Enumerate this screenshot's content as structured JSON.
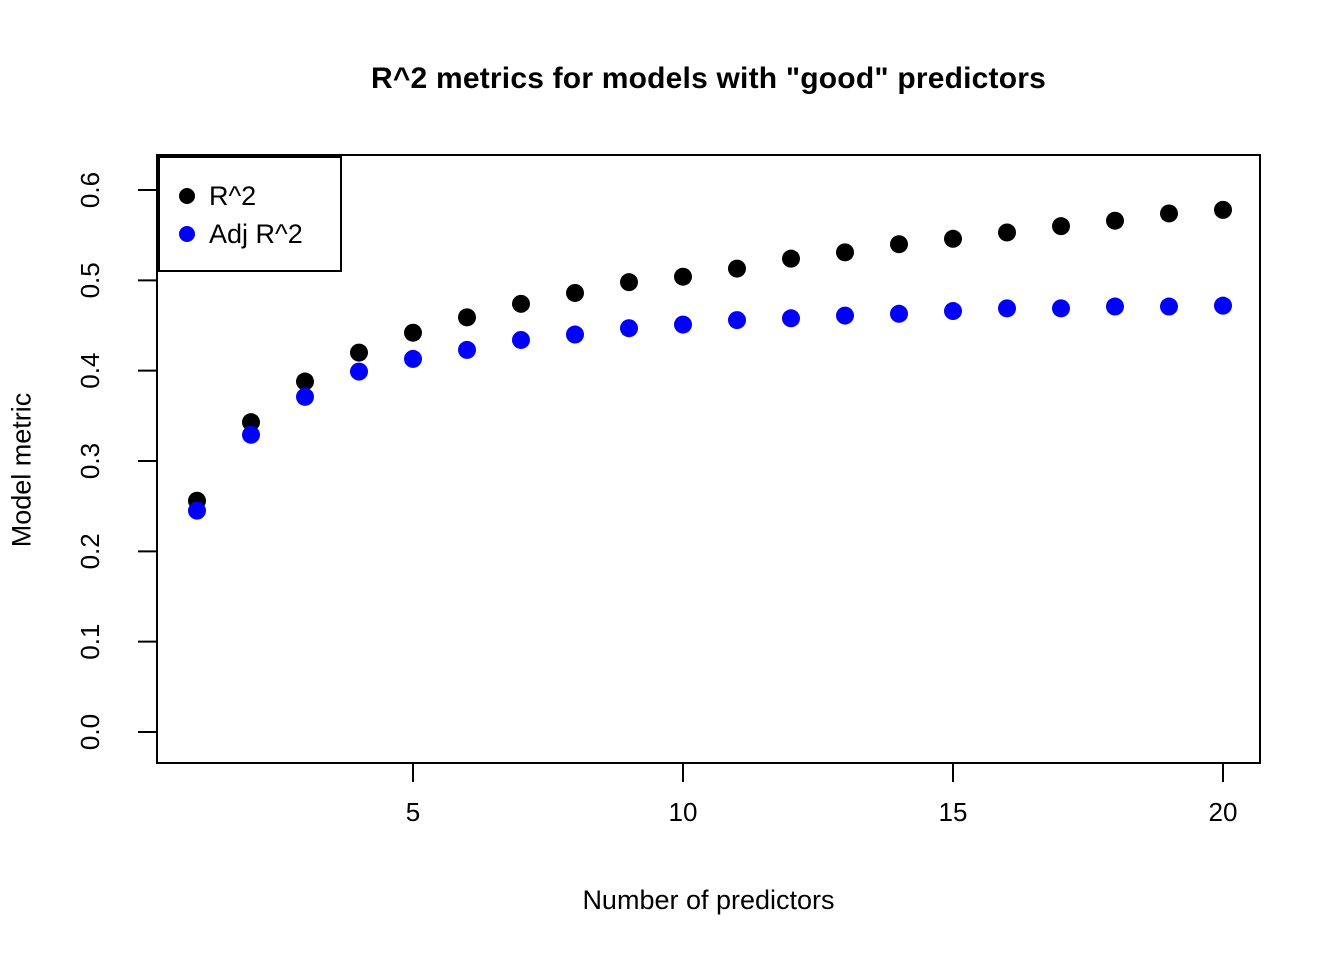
{
  "figure": {
    "background": "#ffffff"
  },
  "chart_data": {
    "type": "scatter",
    "title": "R^2 metrics for models with \"good\" predictors",
    "xlabel": "Number of predictors",
    "ylabel": "Model metric",
    "xlim": [
      1,
      20
    ],
    "ylim": [
      0.0,
      0.6
    ],
    "grid": false,
    "legend_position": "topleft",
    "x_ticks": [
      "5",
      "10",
      "15",
      "20"
    ],
    "x_tick_values": [
      5,
      10,
      15,
      20
    ],
    "y_ticks": [
      "0.0",
      "0.1",
      "0.2",
      "0.3",
      "0.4",
      "0.5",
      "0.6"
    ],
    "y_tick_values": [
      0.0,
      0.1,
      0.2,
      0.3,
      0.4,
      0.5,
      0.6
    ],
    "x": [
      1,
      2,
      3,
      4,
      5,
      6,
      7,
      8,
      9,
      10,
      11,
      12,
      13,
      14,
      15,
      16,
      17,
      18,
      19,
      20
    ],
    "series": [
      {
        "name": "R^2",
        "color": "#000000",
        "values": [
          0.256,
          0.343,
          0.388,
          0.42,
          0.442,
          0.459,
          0.474,
          0.486,
          0.498,
          0.504,
          0.513,
          0.524,
          0.531,
          0.54,
          0.546,
          0.553,
          0.56,
          0.566,
          0.574,
          0.578
        ]
      },
      {
        "name": "Adj R^2",
        "color": "#0000ff",
        "values": [
          0.245,
          0.329,
          0.371,
          0.399,
          0.413,
          0.423,
          0.434,
          0.44,
          0.447,
          0.451,
          0.456,
          0.458,
          0.461,
          0.463,
          0.466,
          0.469,
          0.469,
          0.471,
          0.471,
          0.472
        ]
      }
    ]
  },
  "legend": {
    "items": [
      {
        "label": "R^2",
        "color": "#000000"
      },
      {
        "label": "Adj R^2",
        "color": "#0000ff"
      }
    ]
  }
}
